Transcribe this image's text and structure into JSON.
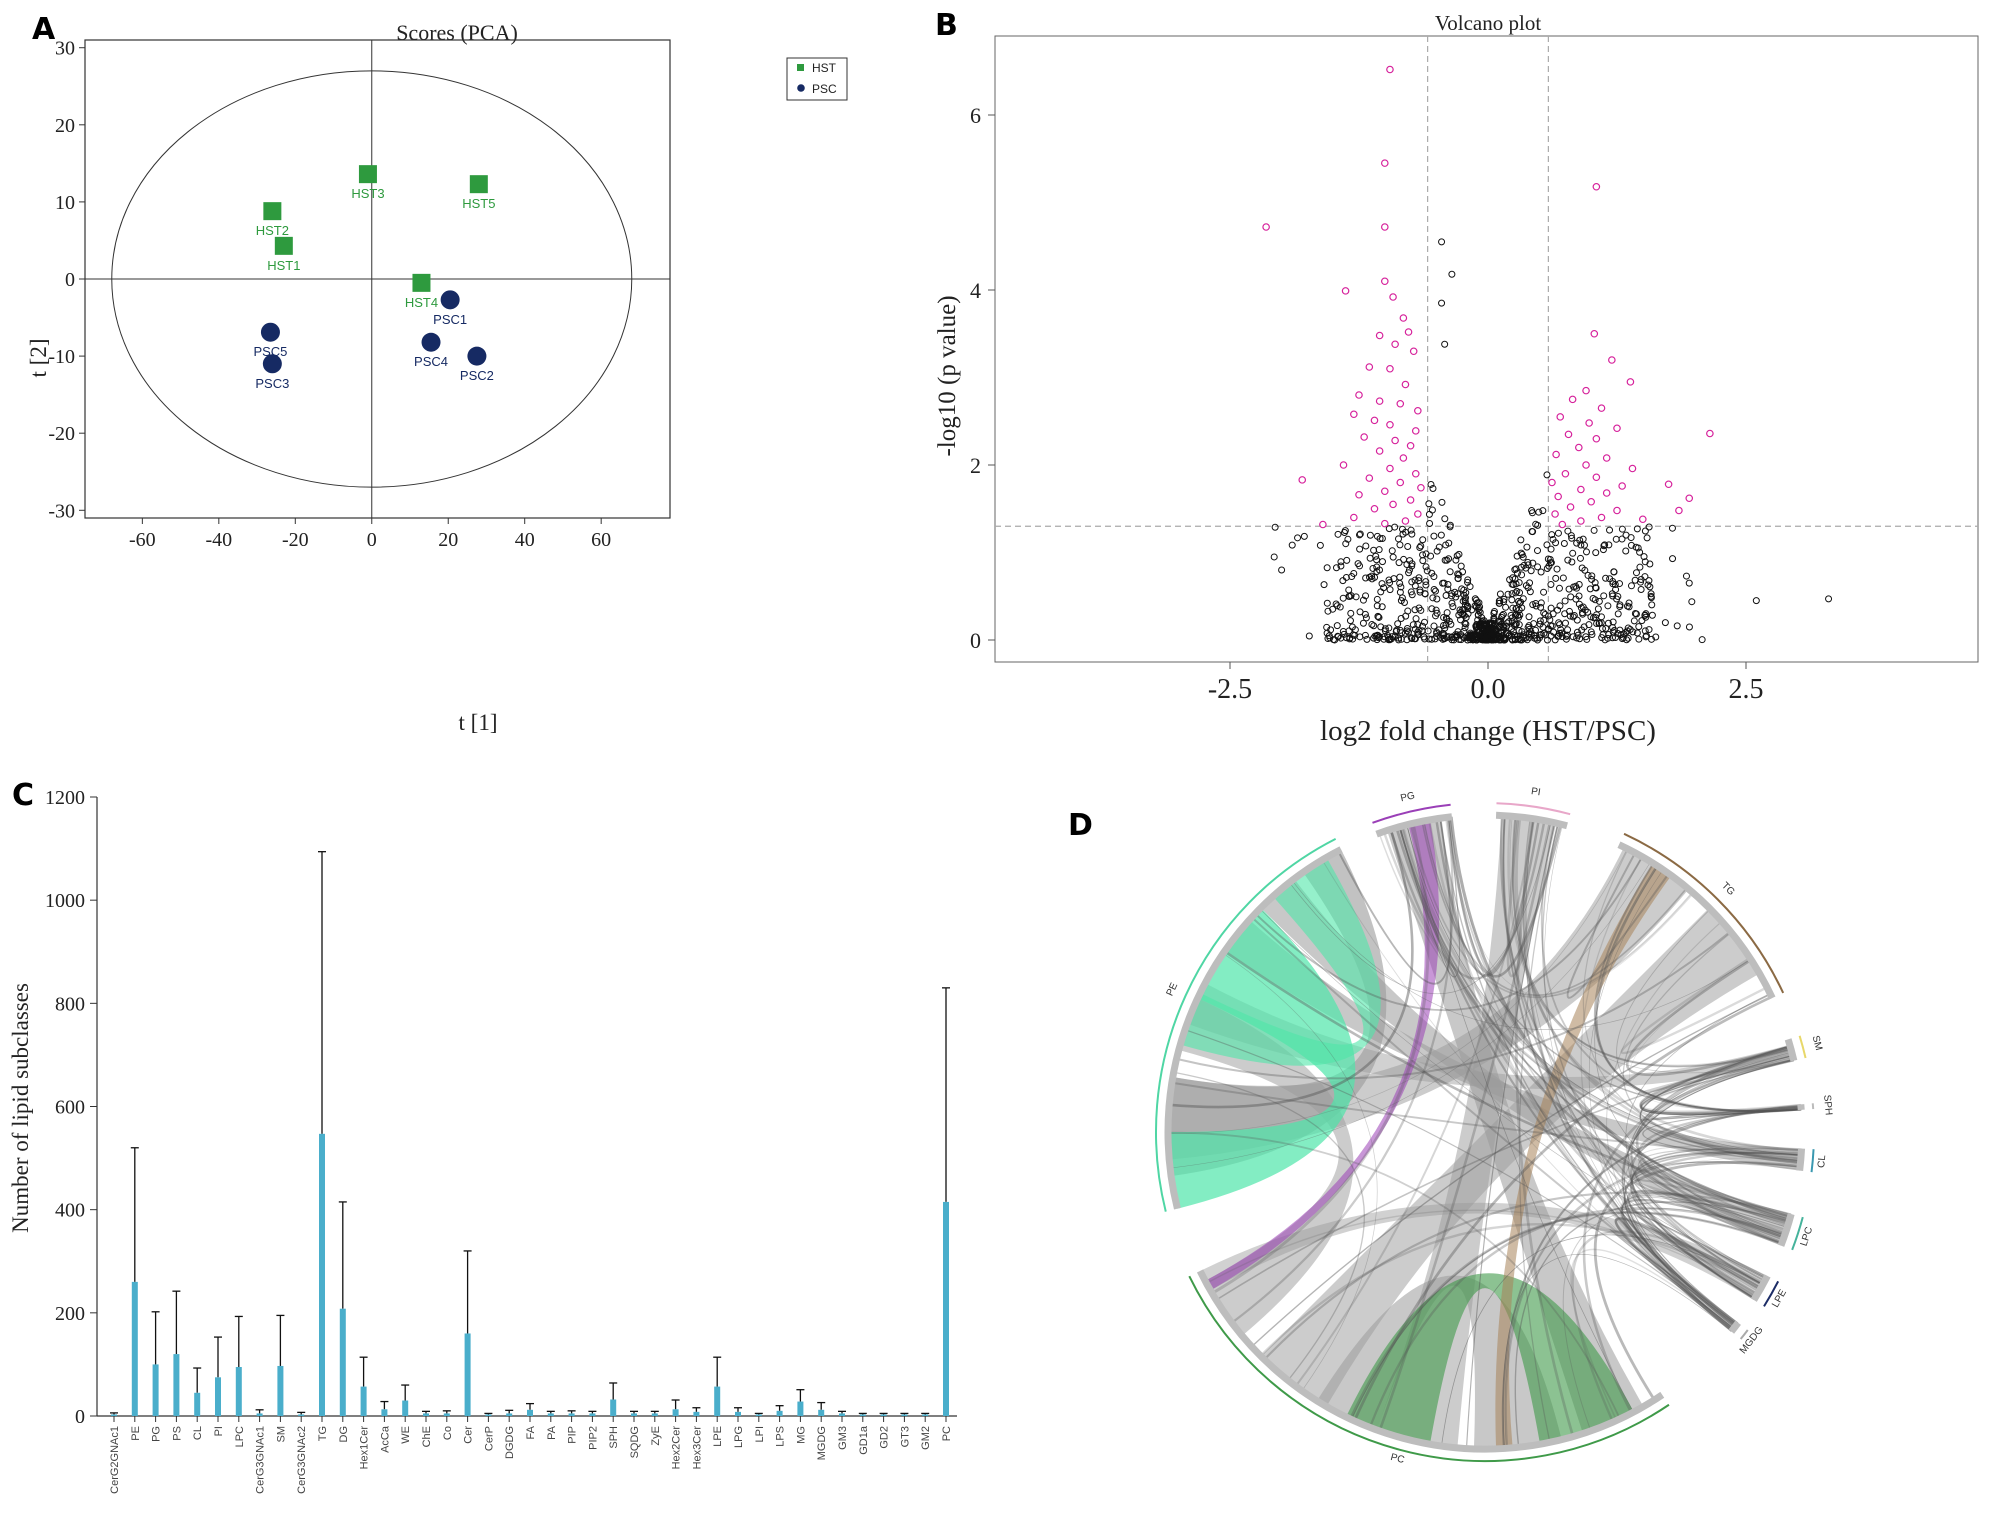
{
  "panels": {
    "a": "A",
    "b": "B",
    "c": "C",
    "d": "D"
  },
  "chart_data": [
    {
      "type": "scatter",
      "panel": "A",
      "title": "Scores (PCA)",
      "xlabel": "t [1]",
      "ylabel": "t [2]",
      "xlim": [
        -75,
        78
      ],
      "ylim": [
        -31,
        31
      ],
      "xticks": [
        "-60",
        "-40",
        "-20",
        "0",
        "20",
        "40",
        "60"
      ],
      "yticks": [
        "30",
        "20",
        "10",
        "0",
        "-10",
        "-20",
        "-30"
      ],
      "ellipse": {
        "rx": 68,
        "ry": 27
      },
      "legend": [
        "HST",
        "PSC"
      ],
      "colors": {
        "HST": "#2e9a3e",
        "PSC": "#162a63"
      },
      "series": [
        {
          "name": "HST",
          "marker": "square",
          "points": [
            {
              "label": "HST1",
              "x": -23,
              "y": 4.3
            },
            {
              "label": "HST2",
              "x": -26,
              "y": 8.8
            },
            {
              "label": "HST3",
              "x": -1,
              "y": 13.6
            },
            {
              "label": "HST4",
              "x": 13,
              "y": -0.5
            },
            {
              "label": "HST5",
              "x": 28,
              "y": 12.3
            }
          ]
        },
        {
          "name": "PSC",
          "marker": "circle",
          "points": [
            {
              "label": "PSC1",
              "x": 20.5,
              "y": -2.7
            },
            {
              "label": "PSC2",
              "x": 27.5,
              "y": -10
            },
            {
              "label": "PSC3",
              "x": -26,
              "y": -11
            },
            {
              "label": "PSC4",
              "x": 15.5,
              "y": -8.2
            },
            {
              "label": "PSC5",
              "x": -26.5,
              "y": -6.9
            }
          ]
        }
      ]
    },
    {
      "type": "scatter",
      "panel": "B",
      "title": "Volcano plot",
      "xlabel": "log2 fold change (HST/PSC)",
      "ylabel": "-log10 (p value)",
      "xlim": [
        -4.5,
        4.5
      ],
      "ylim": [
        -0.3,
        6.7
      ],
      "xticks": [
        "-2.5",
        "0.0",
        "2.5"
      ],
      "yticks": [
        "6",
        "4",
        "2",
        "0"
      ],
      "thresholds": {
        "fc_neg": -0.585,
        "fc_pos": 0.585,
        "p": 1.3
      },
      "colors": {
        "significant": "#d6219b",
        "nonsignificant": "#111111"
      },
      "significant_points": [
        [
          -0.95,
          6.52
        ],
        [
          -1.0,
          5.45
        ],
        [
          -2.15,
          4.72
        ],
        [
          -1.0,
          4.72
        ],
        [
          1.05,
          5.18
        ],
        [
          -1.38,
          3.99
        ],
        [
          -1.0,
          4.1
        ],
        [
          -0.92,
          3.92
        ],
        [
          -0.82,
          3.68
        ],
        [
          -0.77,
          3.52
        ],
        [
          -1.05,
          3.48
        ],
        [
          -0.9,
          3.38
        ],
        [
          -0.72,
          3.3
        ],
        [
          -1.15,
          3.12
        ],
        [
          -0.95,
          3.1
        ],
        [
          -0.8,
          2.92
        ],
        [
          -1.25,
          2.8
        ],
        [
          -1.05,
          2.73
        ],
        [
          -0.85,
          2.7
        ],
        [
          -0.68,
          2.62
        ],
        [
          -1.3,
          2.58
        ],
        [
          -1.1,
          2.51
        ],
        [
          -0.95,
          2.46
        ],
        [
          -0.7,
          2.39
        ],
        [
          -1.2,
          2.32
        ],
        [
          -0.9,
          2.28
        ],
        [
          -0.75,
          2.22
        ],
        [
          -1.05,
          2.16
        ],
        [
          -0.82,
          2.08
        ],
        [
          -1.4,
          2.0
        ],
        [
          -0.95,
          1.96
        ],
        [
          -0.7,
          1.9
        ],
        [
          -1.15,
          1.85
        ],
        [
          -0.85,
          1.8
        ],
        [
          -1.8,
          1.83
        ],
        [
          -0.65,
          1.74
        ],
        [
          -1.0,
          1.7
        ],
        [
          -1.25,
          1.66
        ],
        [
          -0.75,
          1.6
        ],
        [
          -0.92,
          1.55
        ],
        [
          -1.1,
          1.5
        ],
        [
          -0.68,
          1.44
        ],
        [
          -1.3,
          1.4
        ],
        [
          -0.8,
          1.36
        ],
        [
          -1.6,
          1.32
        ],
        [
          -1.0,
          1.33
        ],
        [
          1.03,
          3.5
        ],
        [
          1.2,
          3.2
        ],
        [
          1.38,
          2.95
        ],
        [
          0.95,
          2.85
        ],
        [
          0.82,
          2.75
        ],
        [
          1.1,
          2.65
        ],
        [
          0.7,
          2.55
        ],
        [
          0.98,
          2.48
        ],
        [
          1.25,
          2.42
        ],
        [
          0.78,
          2.35
        ],
        [
          1.05,
          2.3
        ],
        [
          2.15,
          2.36
        ],
        [
          0.88,
          2.2
        ],
        [
          0.66,
          2.12
        ],
        [
          1.15,
          2.08
        ],
        [
          0.95,
          2.0
        ],
        [
          1.4,
          1.96
        ],
        [
          0.75,
          1.9
        ],
        [
          1.05,
          1.86
        ],
        [
          0.62,
          1.8
        ],
        [
          1.3,
          1.76
        ],
        [
          1.75,
          1.78
        ],
        [
          0.9,
          1.72
        ],
        [
          1.15,
          1.68
        ],
        [
          0.68,
          1.64
        ],
        [
          1.95,
          1.62
        ],
        [
          1.0,
          1.58
        ],
        [
          0.8,
          1.52
        ],
        [
          1.25,
          1.48
        ],
        [
          1.85,
          1.48
        ],
        [
          0.65,
          1.44
        ],
        [
          1.1,
          1.4
        ],
        [
          0.9,
          1.36
        ],
        [
          1.5,
          1.38
        ],
        [
          0.72,
          1.32
        ]
      ]
    },
    {
      "type": "bar",
      "panel": "C",
      "ylabel": "Number of lipid subclasses",
      "xlabel": "",
      "ylim": [
        0,
        1200
      ],
      "yticks": [
        "0",
        "200",
        "400",
        "600",
        "800",
        "1000",
        "1200"
      ],
      "colors": {
        "bar": "#4aaecb"
      },
      "categories": [
        "CerG2GNAc1",
        "PE",
        "PG",
        "PS",
        "CL",
        "PI",
        "LPC",
        "CerG3GNAc1",
        "SM",
        "CerG3GNAc2",
        "TG",
        "DG",
        "Hex1Cer",
        "AcCa",
        "WE",
        "ChE",
        "Co",
        "Cer",
        "CerP",
        "DGDG",
        "FA",
        "PA",
        "PIP",
        "PIP2",
        "SPH",
        "SQDG",
        "ZyE",
        "Hex2Cer",
        "Hex3Cer",
        "LPE",
        "LPG",
        "LPI",
        "LPS",
        "MG",
        "MGDG",
        "GM3",
        "GD1a",
        "GD2",
        "GT3",
        "GM2",
        "PC"
      ],
      "values": [
        3,
        260,
        100,
        120,
        45,
        75,
        95,
        5,
        97,
        3,
        547,
        208,
        57,
        13,
        30,
        5,
        5,
        160,
        3,
        5,
        12,
        5,
        5,
        5,
        32,
        5,
        5,
        13,
        8,
        57,
        8,
        3,
        10,
        28,
        12,
        5,
        3,
        3,
        3,
        3,
        415
      ],
      "errors": [
        3,
        260,
        102,
        122,
        48,
        78,
        98,
        7,
        98,
        4,
        547,
        207,
        57,
        15,
        30,
        4,
        5,
        160,
        2,
        6,
        12,
        4,
        5,
        4,
        32,
        4,
        4,
        18,
        8,
        57,
        8,
        2,
        10,
        23,
        14,
        4,
        2,
        2,
        2,
        2,
        415
      ]
    },
    {
      "type": "other",
      "panel": "D",
      "sectors": [
        "PG",
        "PI",
        "TG",
        "SM",
        "SPH",
        "CL",
        "LPC",
        "LPE",
        "MGDG",
        "PC",
        "PE"
      ],
      "sector_colors": {
        "PG": "#9a3fb7",
        "PI": "#e8a7c9",
        "TG": "#8b6a44",
        "SM": "#e8d86a",
        "SPH": "#bbbbbb",
        "CL": "#3a98b0",
        "LPC": "#45b39b",
        "LPE": "#1c2c66",
        "MGDG": "#aaaaaa",
        "PC": "#3f9a49",
        "PE": "#4fd6a4"
      }
    }
  ]
}
